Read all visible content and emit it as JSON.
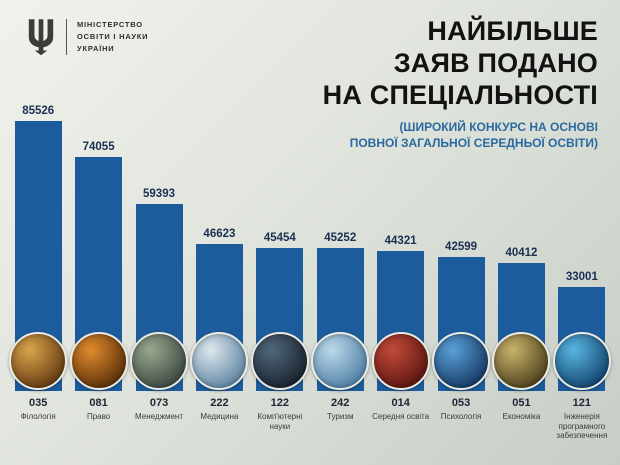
{
  "header": {
    "ministry_lines": [
      "МІНІСТЕРСТВО",
      "ОСВІТИ І НАУКИ",
      "УКРАЇНИ"
    ],
    "title_lines": [
      "НАЙБІЛЬШЕ",
      "ЗАЯВ ПОДАНО",
      "НА СПЕЦІАЛЬНОСТІ"
    ],
    "subtitle_lines": [
      "(ШИРОКИЙ КОНКУРС НА ОСНОВІ",
      "ПОВНОЇ ЗАГАЛЬНОЇ СЕРЕДНЬОЇ ОСВІТИ)"
    ]
  },
  "colors": {
    "bar": "#1d5c9c",
    "value_text": "#1b2f52",
    "title_text": "#121212",
    "subtitle_text": "#2a6aa0"
  },
  "chart_data": {
    "type": "bar",
    "title": "НАЙБІЛЬШЕ ЗАЯВ ПОДАНО НА СПЕЦІАЛЬНОСТІ",
    "subtitle": "(ШИРОКИЙ КОНКУРС НА ОСНОВІ ПОВНОЇ ЗАГАЛЬНОЇ СЕРЕДНЬОЇ ОСВІТИ)",
    "ylim": [
      0,
      90000
    ],
    "grid": false,
    "legend": false,
    "bar_color": "#1d5c9c",
    "bars": [
      {
        "value": 85526,
        "code": "035",
        "label": "Філологія",
        "icon": "open-book-photo",
        "photo": [
          "#d9a44a",
          "#59310e"
        ]
      },
      {
        "value": 74055,
        "code": "081",
        "label": "Право",
        "icon": "gavel-photo",
        "photo": [
          "#e08b2d",
          "#4f2706"
        ]
      },
      {
        "value": 59393,
        "code": "073",
        "label": "Менеджмент",
        "icon": "manager-writing-photo",
        "photo": [
          "#9aa88f",
          "#33403a"
        ]
      },
      {
        "value": 46623,
        "code": "222",
        "label": "Медицина",
        "icon": "medic-photo",
        "photo": [
          "#dde7ed",
          "#547d9c"
        ]
      },
      {
        "value": 45454,
        "code": "122",
        "label": "Комп'ютерні науки",
        "icon": "laptop-photo",
        "photo": [
          "#51687c",
          "#131c26"
        ]
      },
      {
        "value": 45252,
        "code": "242",
        "label": "Туризм",
        "icon": "landmarks-photo",
        "photo": [
          "#bcd9ea",
          "#47799f"
        ]
      },
      {
        "value": 44321,
        "code": "014",
        "label": "Середня освіта",
        "icon": "red-books-photo",
        "photo": [
          "#c24a3a",
          "#53120d"
        ]
      },
      {
        "value": 42599,
        "code": "053",
        "label": "Психологія",
        "icon": "brain-photo",
        "photo": [
          "#5aa0d8",
          "#0f3159"
        ]
      },
      {
        "value": 40412,
        "code": "051",
        "label": "Економіка",
        "icon": "coins-hand-photo",
        "photo": [
          "#c9b36a",
          "#433716"
        ]
      },
      {
        "value": 33001,
        "code": "121",
        "label": "Інженерія програмного забезпечення",
        "icon": "digital-tech-photo",
        "photo": [
          "#58b6e0",
          "#0d3a66"
        ]
      }
    ]
  }
}
